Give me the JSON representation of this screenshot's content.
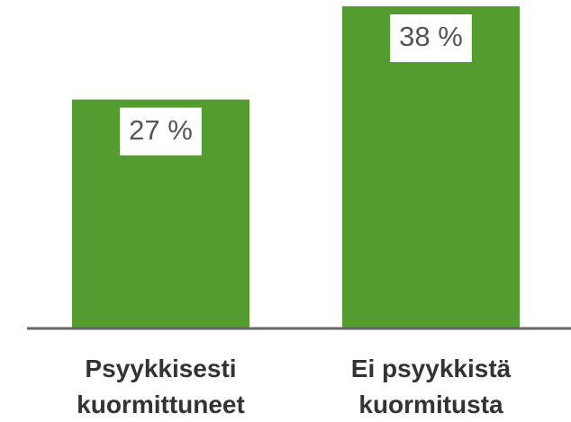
{
  "chart_data": {
    "type": "bar",
    "categories": [
      "Psyykkisesti kuormittuneet",
      "Ei psyykkistä kuormitusta"
    ],
    "values": [
      27,
      38
    ],
    "value_labels": [
      "27 %",
      "38 %"
    ],
    "color": "#559c30"
  }
}
